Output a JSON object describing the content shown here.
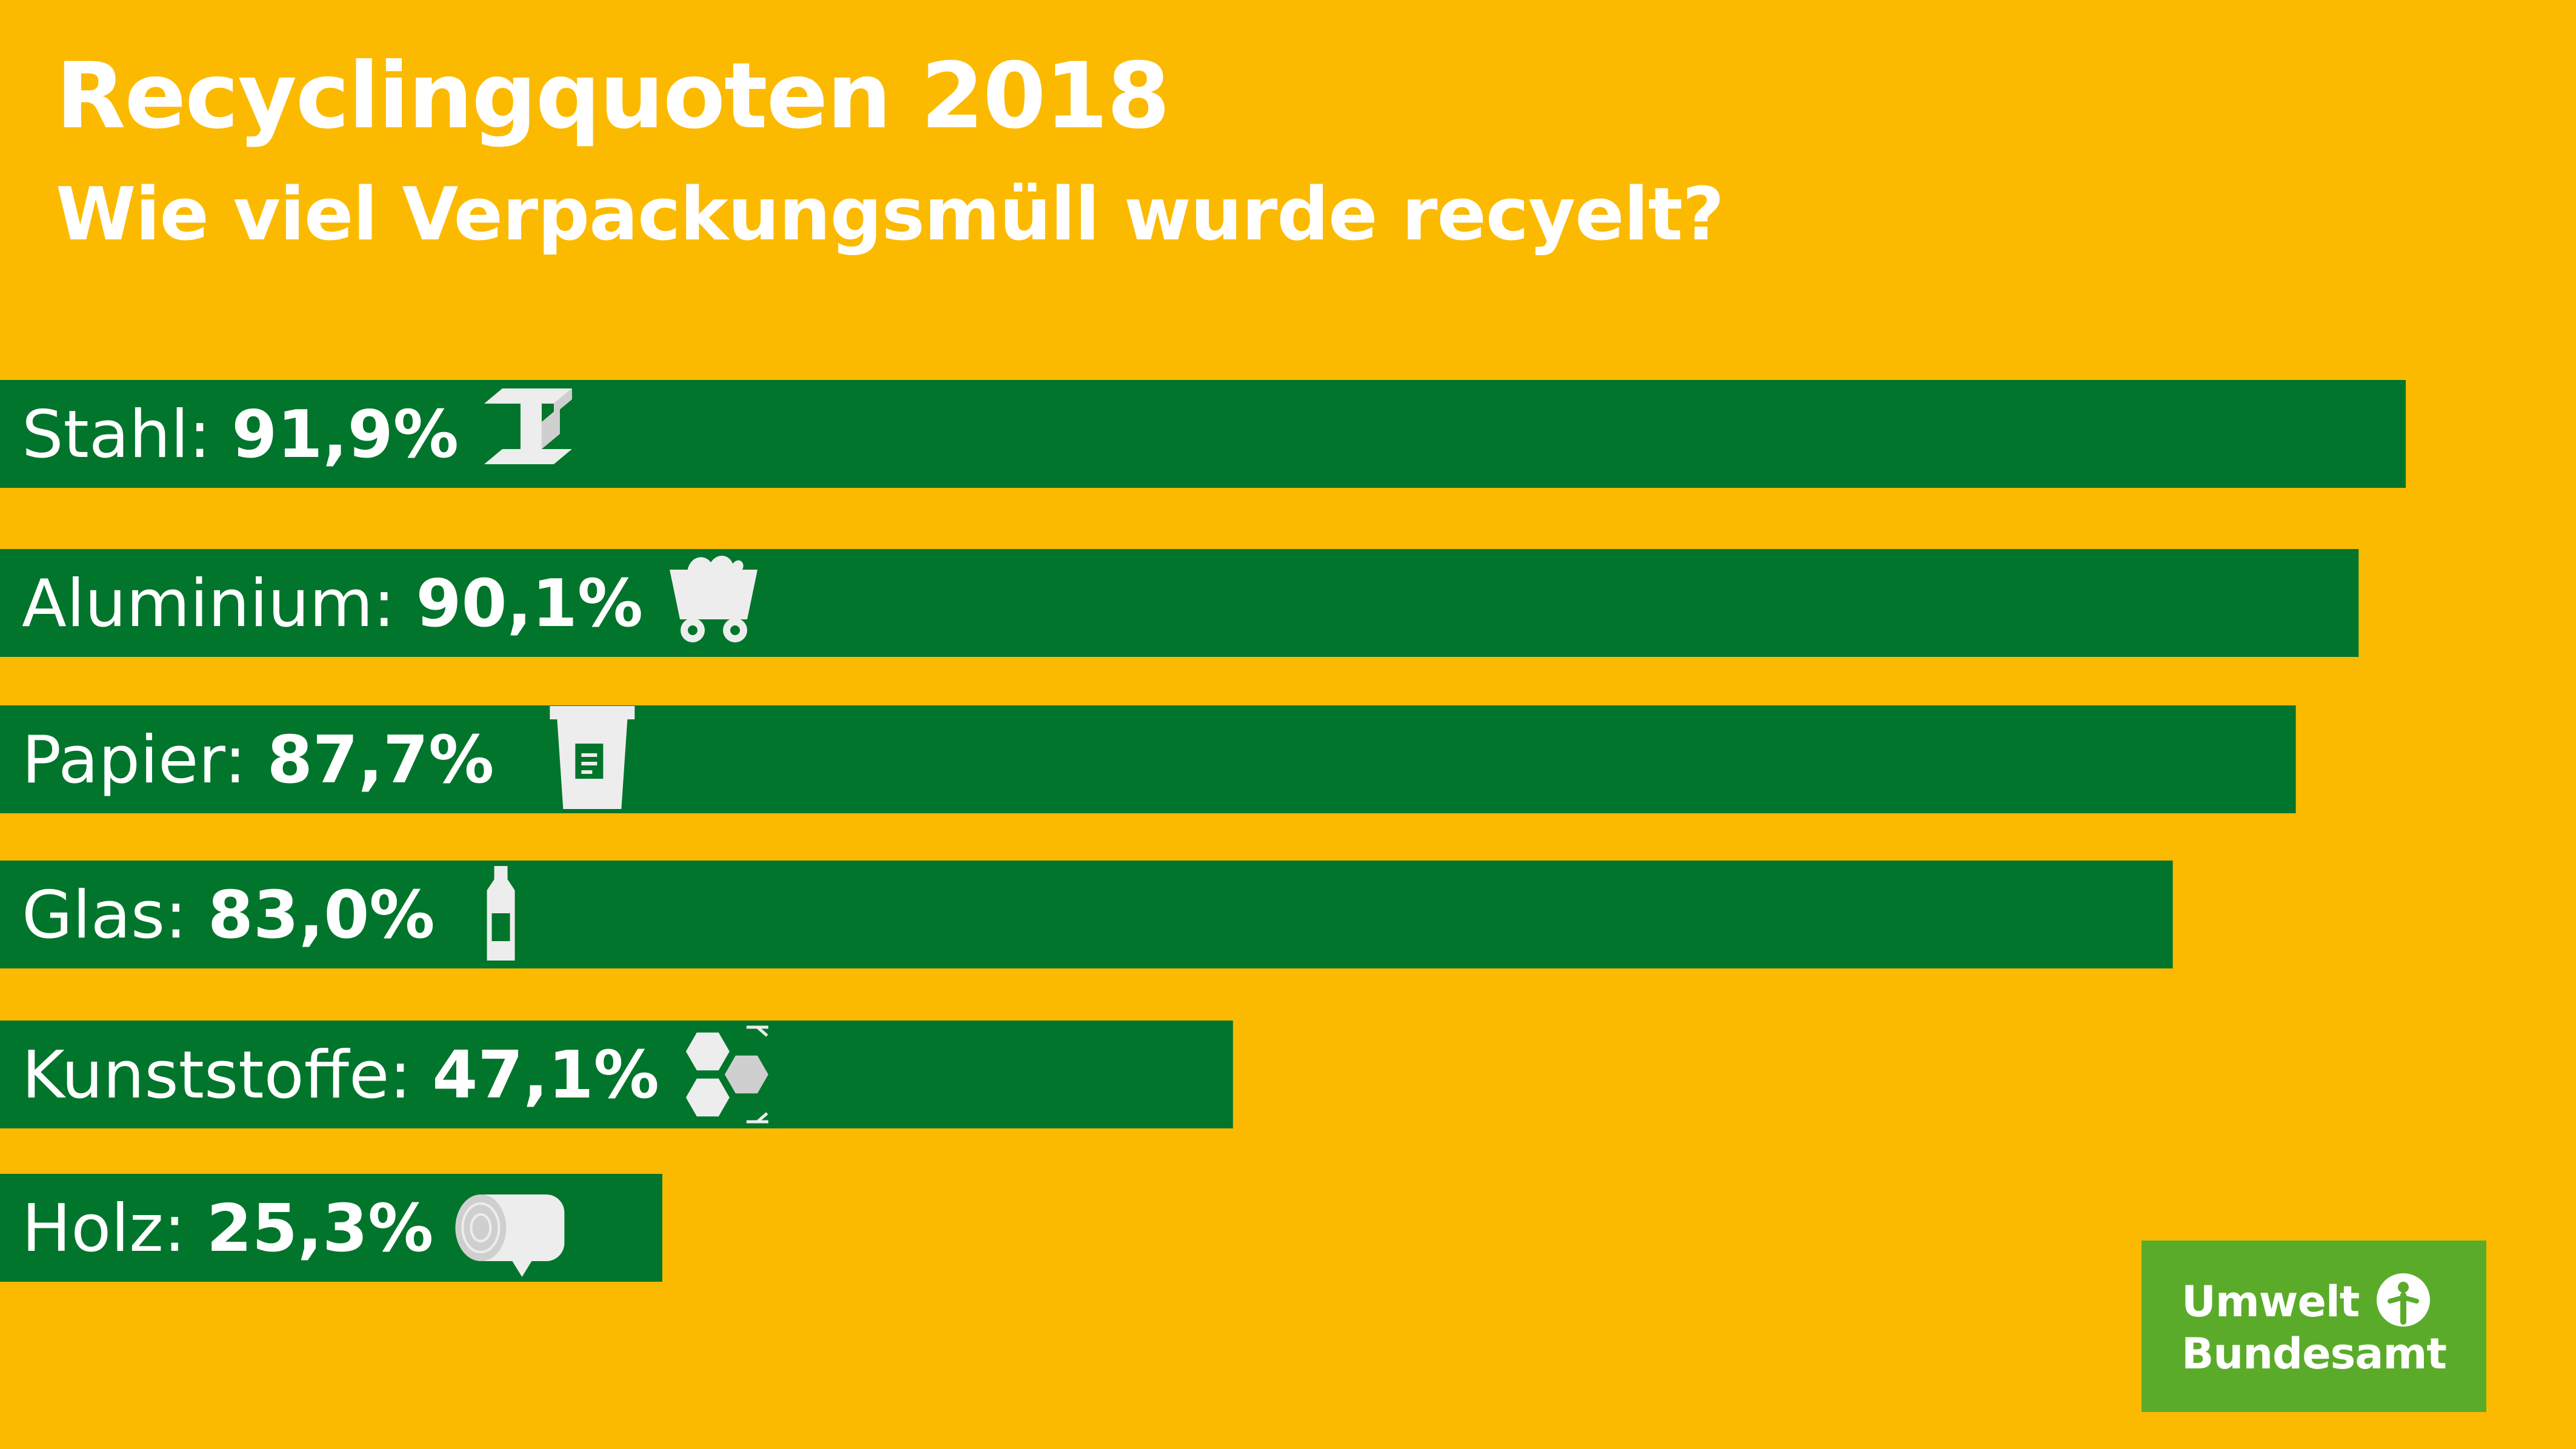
{
  "title": "Recyclingquoten 2018",
  "subtitle": "Wie viel Verpackungsmüll wurde recyelt?",
  "colors": {
    "background": "#FBBA00",
    "bar": "#00752B",
    "logo": "#5BAB2B",
    "text": "#FFFFFF"
  },
  "logo": {
    "line1": "Umwelt",
    "line2": "Bundesamt"
  },
  "chart_data": {
    "type": "bar",
    "orientation": "horizontal",
    "title": "Recyclingquoten 2018",
    "subtitle": "Wie viel Verpackungsmüll wurde recyelt?",
    "categories": [
      "Stahl",
      "Aluminium",
      "Papier",
      "Glas",
      "Kunststoffe",
      "Holz"
    ],
    "values": [
      91.9,
      90.1,
      87.7,
      83.0,
      47.1,
      25.3
    ],
    "value_labels": [
      "91,9%",
      "90,1%",
      "87,7%",
      "83,0%",
      "47,1%",
      "25,3%"
    ],
    "label_suffix": ":",
    "icons": [
      "steel-beam-icon",
      "mine-cart-icon",
      "paper-bin-icon",
      "glass-bottle-icon",
      "plastic-hexagon-icon",
      "wood-log-icon"
    ],
    "xlim": [
      0,
      100
    ],
    "grid": false,
    "legend": false
  }
}
